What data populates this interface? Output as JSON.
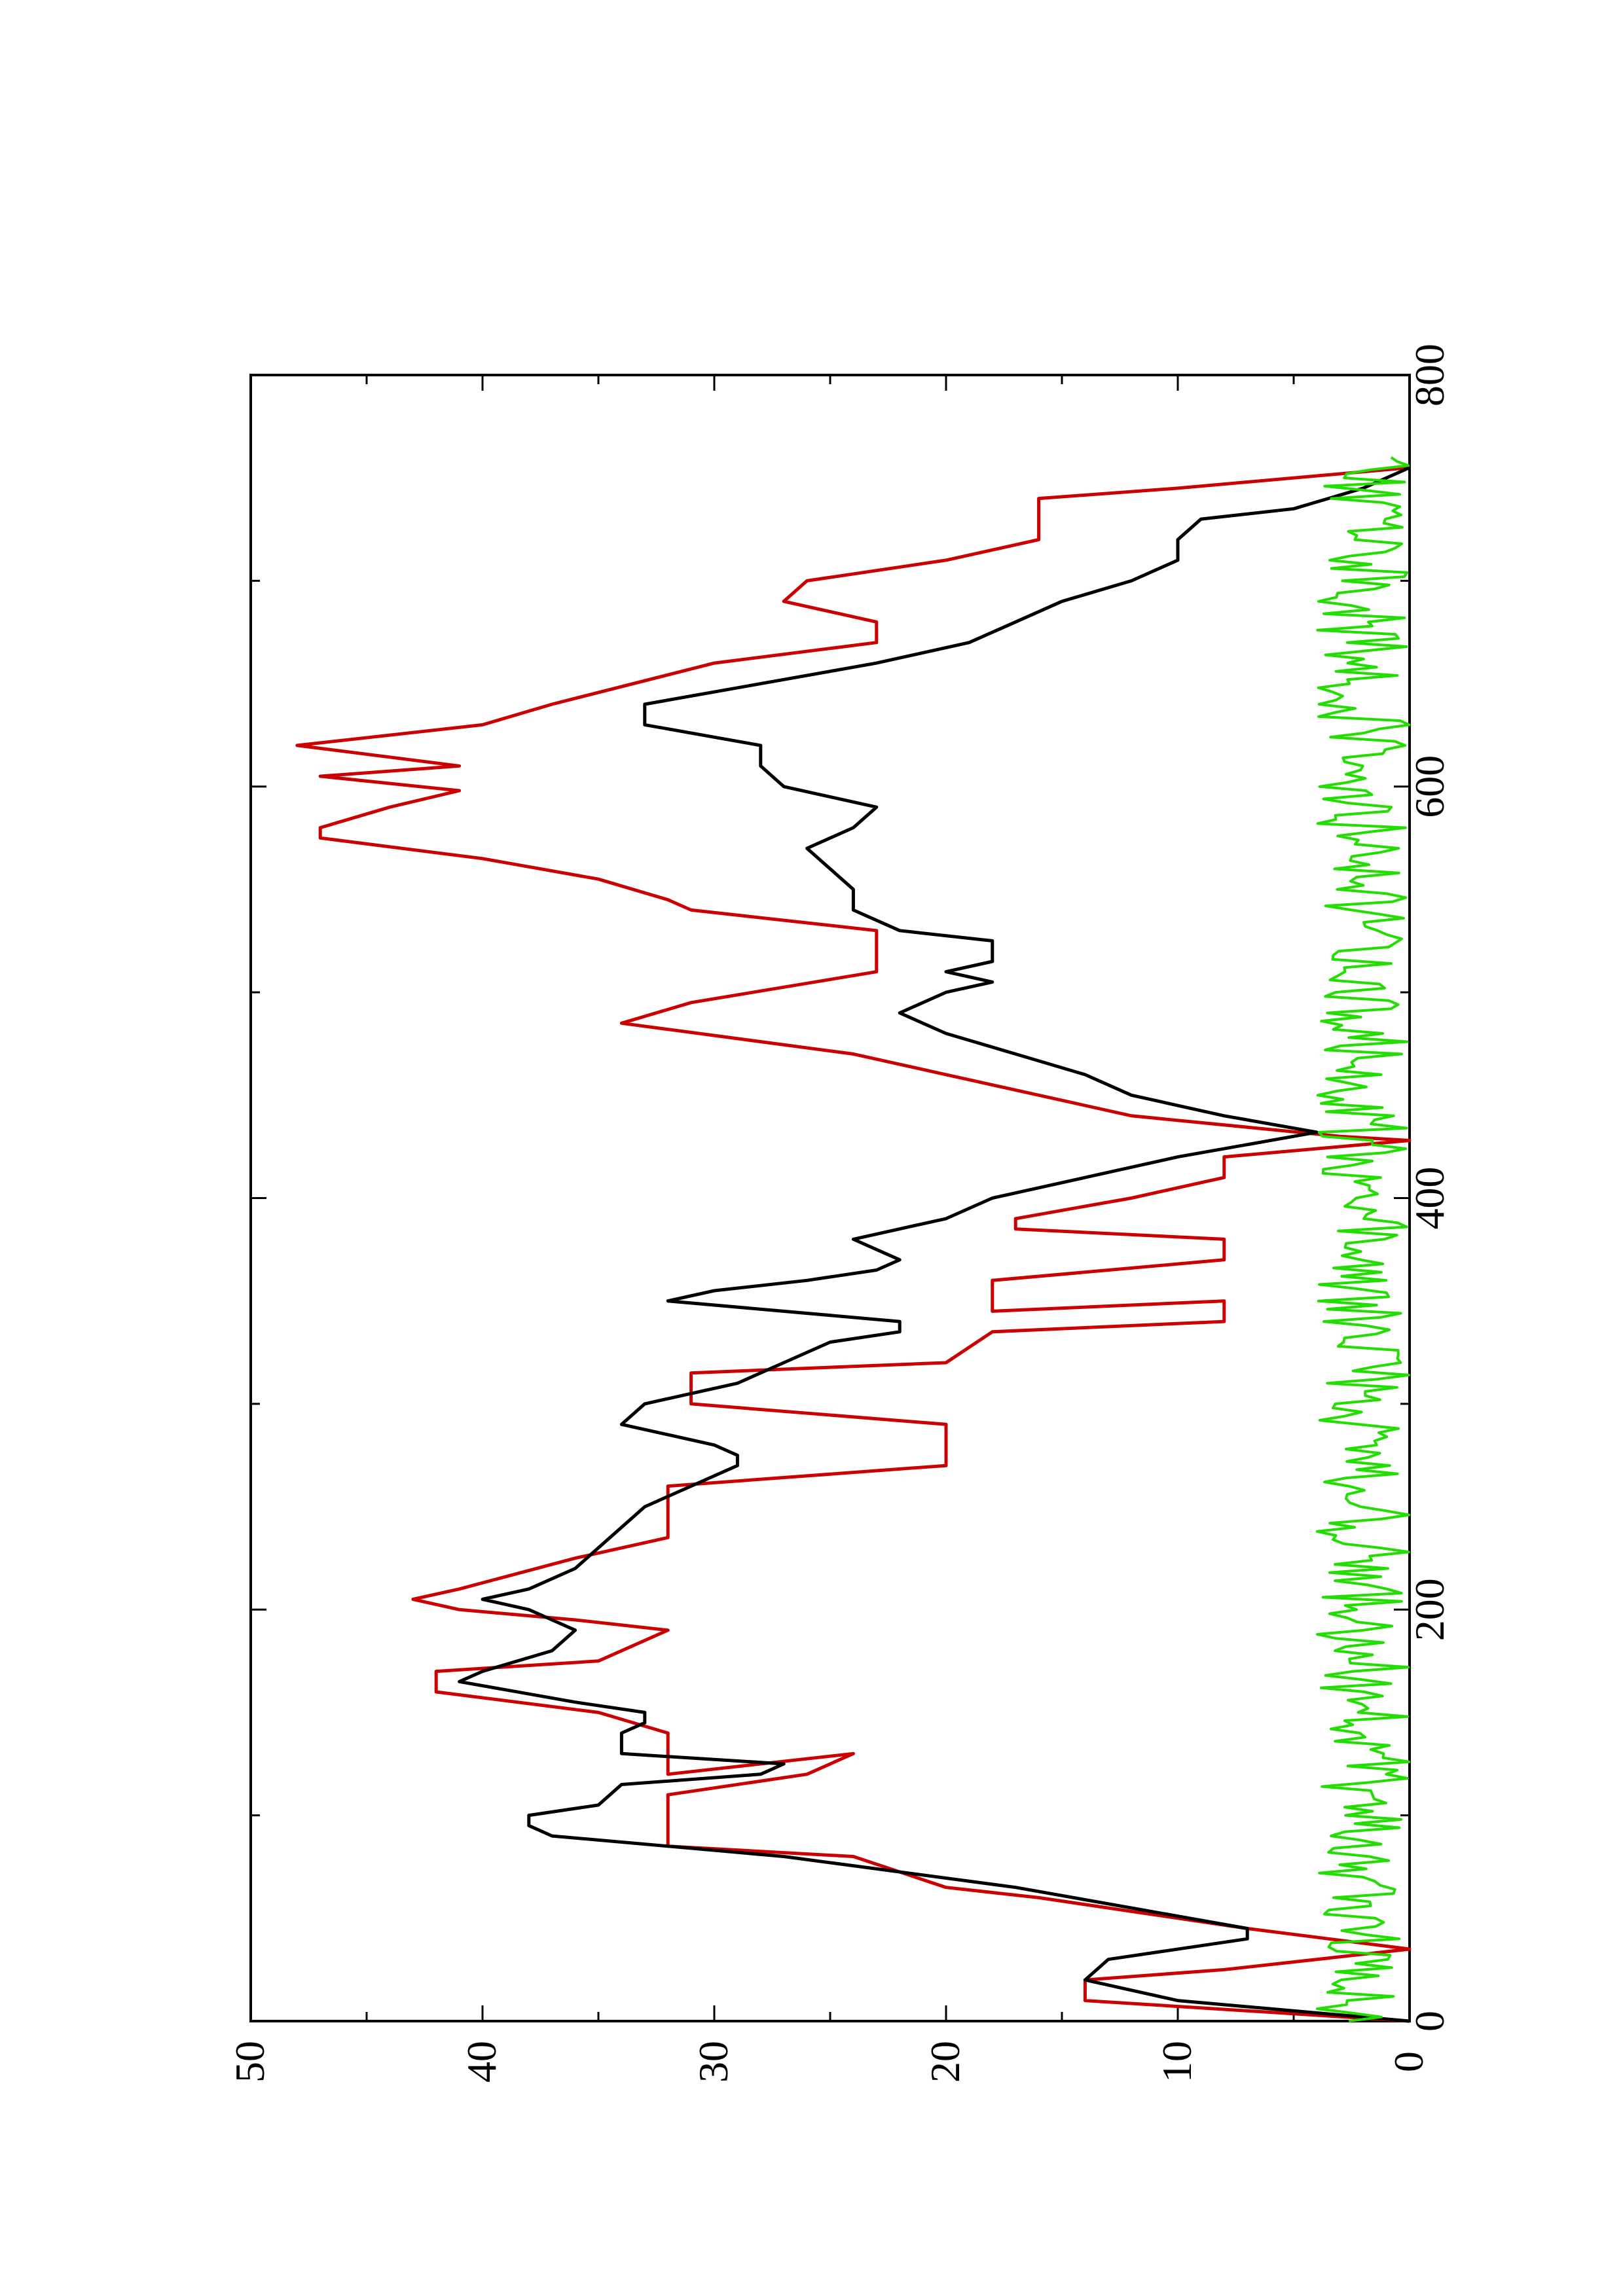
{
  "chart_data": {
    "type": "line",
    "orientation": "rotated-90-ccw",
    "title": "",
    "xlabel": "",
    "ylabel": "",
    "xlim": [
      0,
      800
    ],
    "ylim": [
      0,
      50
    ],
    "x_ticks": [
      0,
      200,
      400,
      600,
      800
    ],
    "y_ticks": [
      0,
      10,
      20,
      30,
      40,
      50
    ],
    "x_minor_ticks": [
      100,
      300,
      500,
      700
    ],
    "y_minor_ticks": [
      5,
      15,
      25,
      35,
      45
    ],
    "grid": false,
    "legend": "none",
    "series": [
      {
        "color": "#cc0000",
        "style": "step",
        "points": [
          [
            0,
            0
          ],
          [
            10,
            14
          ],
          [
            20,
            14
          ],
          [
            25,
            8
          ],
          [
            35,
            0
          ],
          [
            45,
            7
          ],
          [
            60,
            16
          ],
          [
            65,
            20
          ],
          [
            80,
            24
          ],
          [
            85,
            32
          ],
          [
            110,
            32
          ],
          [
            120,
            26
          ],
          [
            130,
            24
          ],
          [
            120,
            32
          ],
          [
            140,
            32
          ],
          [
            150,
            35
          ],
          [
            160,
            42
          ],
          [
            170,
            42
          ],
          [
            175,
            35
          ],
          [
            190,
            32
          ],
          [
            195,
            36
          ],
          [
            200,
            41
          ],
          [
            205,
            43
          ],
          [
            210,
            41
          ],
          [
            225,
            36
          ],
          [
            235,
            32
          ],
          [
            260,
            32
          ],
          [
            270,
            20
          ],
          [
            290,
            20
          ],
          [
            300,
            31
          ],
          [
            315,
            31
          ],
          [
            320,
            20
          ],
          [
            335,
            18
          ],
          [
            340,
            8
          ],
          [
            350,
            8
          ],
          [
            345,
            18
          ],
          [
            360,
            18
          ],
          [
            370,
            8
          ],
          [
            380,
            8
          ],
          [
            385,
            17
          ],
          [
            390,
            17
          ],
          [
            400,
            12
          ],
          [
            410,
            8
          ],
          [
            420,
            8
          ],
          [
            428,
            0
          ],
          [
            430,
            3
          ],
          [
            440,
            12
          ],
          [
            450,
            16
          ],
          [
            460,
            20
          ],
          [
            470,
            24
          ],
          [
            485,
            34
          ],
          [
            495,
            31
          ],
          [
            510,
            23
          ],
          [
            530,
            23
          ],
          [
            540,
            31
          ],
          [
            545,
            32
          ],
          [
            555,
            35
          ],
          [
            565,
            40
          ],
          [
            575,
            47
          ],
          [
            580,
            47
          ],
          [
            590,
            44
          ],
          [
            598,
            41
          ],
          [
            605,
            47
          ],
          [
            610,
            41
          ],
          [
            620,
            48
          ],
          [
            630,
            40
          ],
          [
            640,
            37
          ],
          [
            660,
            30
          ],
          [
            670,
            23
          ],
          [
            680,
            23
          ],
          [
            690,
            27
          ],
          [
            700,
            26
          ],
          [
            710,
            20
          ],
          [
            720,
            16
          ],
          [
            740,
            16
          ],
          [
            745,
            10
          ],
          [
            755,
            0
          ]
        ]
      },
      {
        "color": "#000000",
        "style": "line",
        "points": [
          [
            0,
            0
          ],
          [
            10,
            10
          ],
          [
            20,
            14
          ],
          [
            30,
            13
          ],
          [
            40,
            7
          ],
          [
            45,
            7
          ],
          [
            55,
            12
          ],
          [
            65,
            17
          ],
          [
            80,
            27
          ],
          [
            90,
            37
          ],
          [
            95,
            38
          ],
          [
            100,
            38
          ],
          [
            105,
            35
          ],
          [
            115,
            34
          ],
          [
            120,
            28
          ],
          [
            125,
            27
          ],
          [
            130,
            34
          ],
          [
            140,
            34
          ],
          [
            145,
            33
          ],
          [
            150,
            33
          ],
          [
            155,
            36
          ],
          [
            165,
            41
          ],
          [
            170,
            40
          ],
          [
            180,
            37
          ],
          [
            190,
            36
          ],
          [
            195,
            37
          ],
          [
            200,
            38
          ],
          [
            205,
            40
          ],
          [
            210,
            38
          ],
          [
            220,
            36
          ],
          [
            230,
            35
          ],
          [
            250,
            33
          ],
          [
            260,
            31
          ],
          [
            270,
            29
          ],
          [
            275,
            29
          ],
          [
            280,
            30
          ],
          [
            290,
            34
          ],
          [
            300,
            33
          ],
          [
            310,
            29
          ],
          [
            320,
            27
          ],
          [
            330,
            25
          ],
          [
            335,
            22
          ],
          [
            340,
            22
          ],
          [
            350,
            32
          ],
          [
            355,
            30
          ],
          [
            360,
            26
          ],
          [
            365,
            23
          ],
          [
            370,
            22
          ],
          [
            380,
            24
          ],
          [
            390,
            20
          ],
          [
            400,
            18
          ],
          [
            410,
            14
          ],
          [
            420,
            10
          ],
          [
            430,
            5
          ],
          [
            432,
            4
          ],
          [
            440,
            8
          ],
          [
            450,
            12
          ],
          [
            460,
            14
          ],
          [
            470,
            17
          ],
          [
            480,
            20
          ],
          [
            490,
            22
          ],
          [
            500,
            20
          ],
          [
            505,
            18
          ],
          [
            510,
            20
          ],
          [
            515,
            18
          ],
          [
            525,
            18
          ],
          [
            530,
            22
          ],
          [
            540,
            24
          ],
          [
            550,
            24
          ],
          [
            560,
            25
          ],
          [
            570,
            26
          ],
          [
            580,
            24
          ],
          [
            590,
            23
          ],
          [
            600,
            27
          ],
          [
            610,
            28
          ],
          [
            620,
            28
          ],
          [
            630,
            33
          ],
          [
            640,
            33
          ],
          [
            650,
            28
          ],
          [
            660,
            23
          ],
          [
            670,
            19
          ],
          [
            680,
            17
          ],
          [
            690,
            15
          ],
          [
            700,
            12
          ],
          [
            710,
            10
          ],
          [
            720,
            10
          ],
          [
            730,
            9
          ],
          [
            735,
            5
          ],
          [
            745,
            2
          ],
          [
            755,
            0
          ]
        ]
      },
      {
        "color": "#22dd00",
        "style": "noise",
        "amplitude_max": 4,
        "x_range": [
          0,
          760
        ],
        "samples": 380
      }
    ]
  },
  "axes": {
    "x_tick_labels": [
      "0",
      "200",
      "400",
      "600",
      "800"
    ],
    "y_tick_labels": [
      "0",
      "10",
      "20",
      "30",
      "40",
      "50"
    ]
  }
}
